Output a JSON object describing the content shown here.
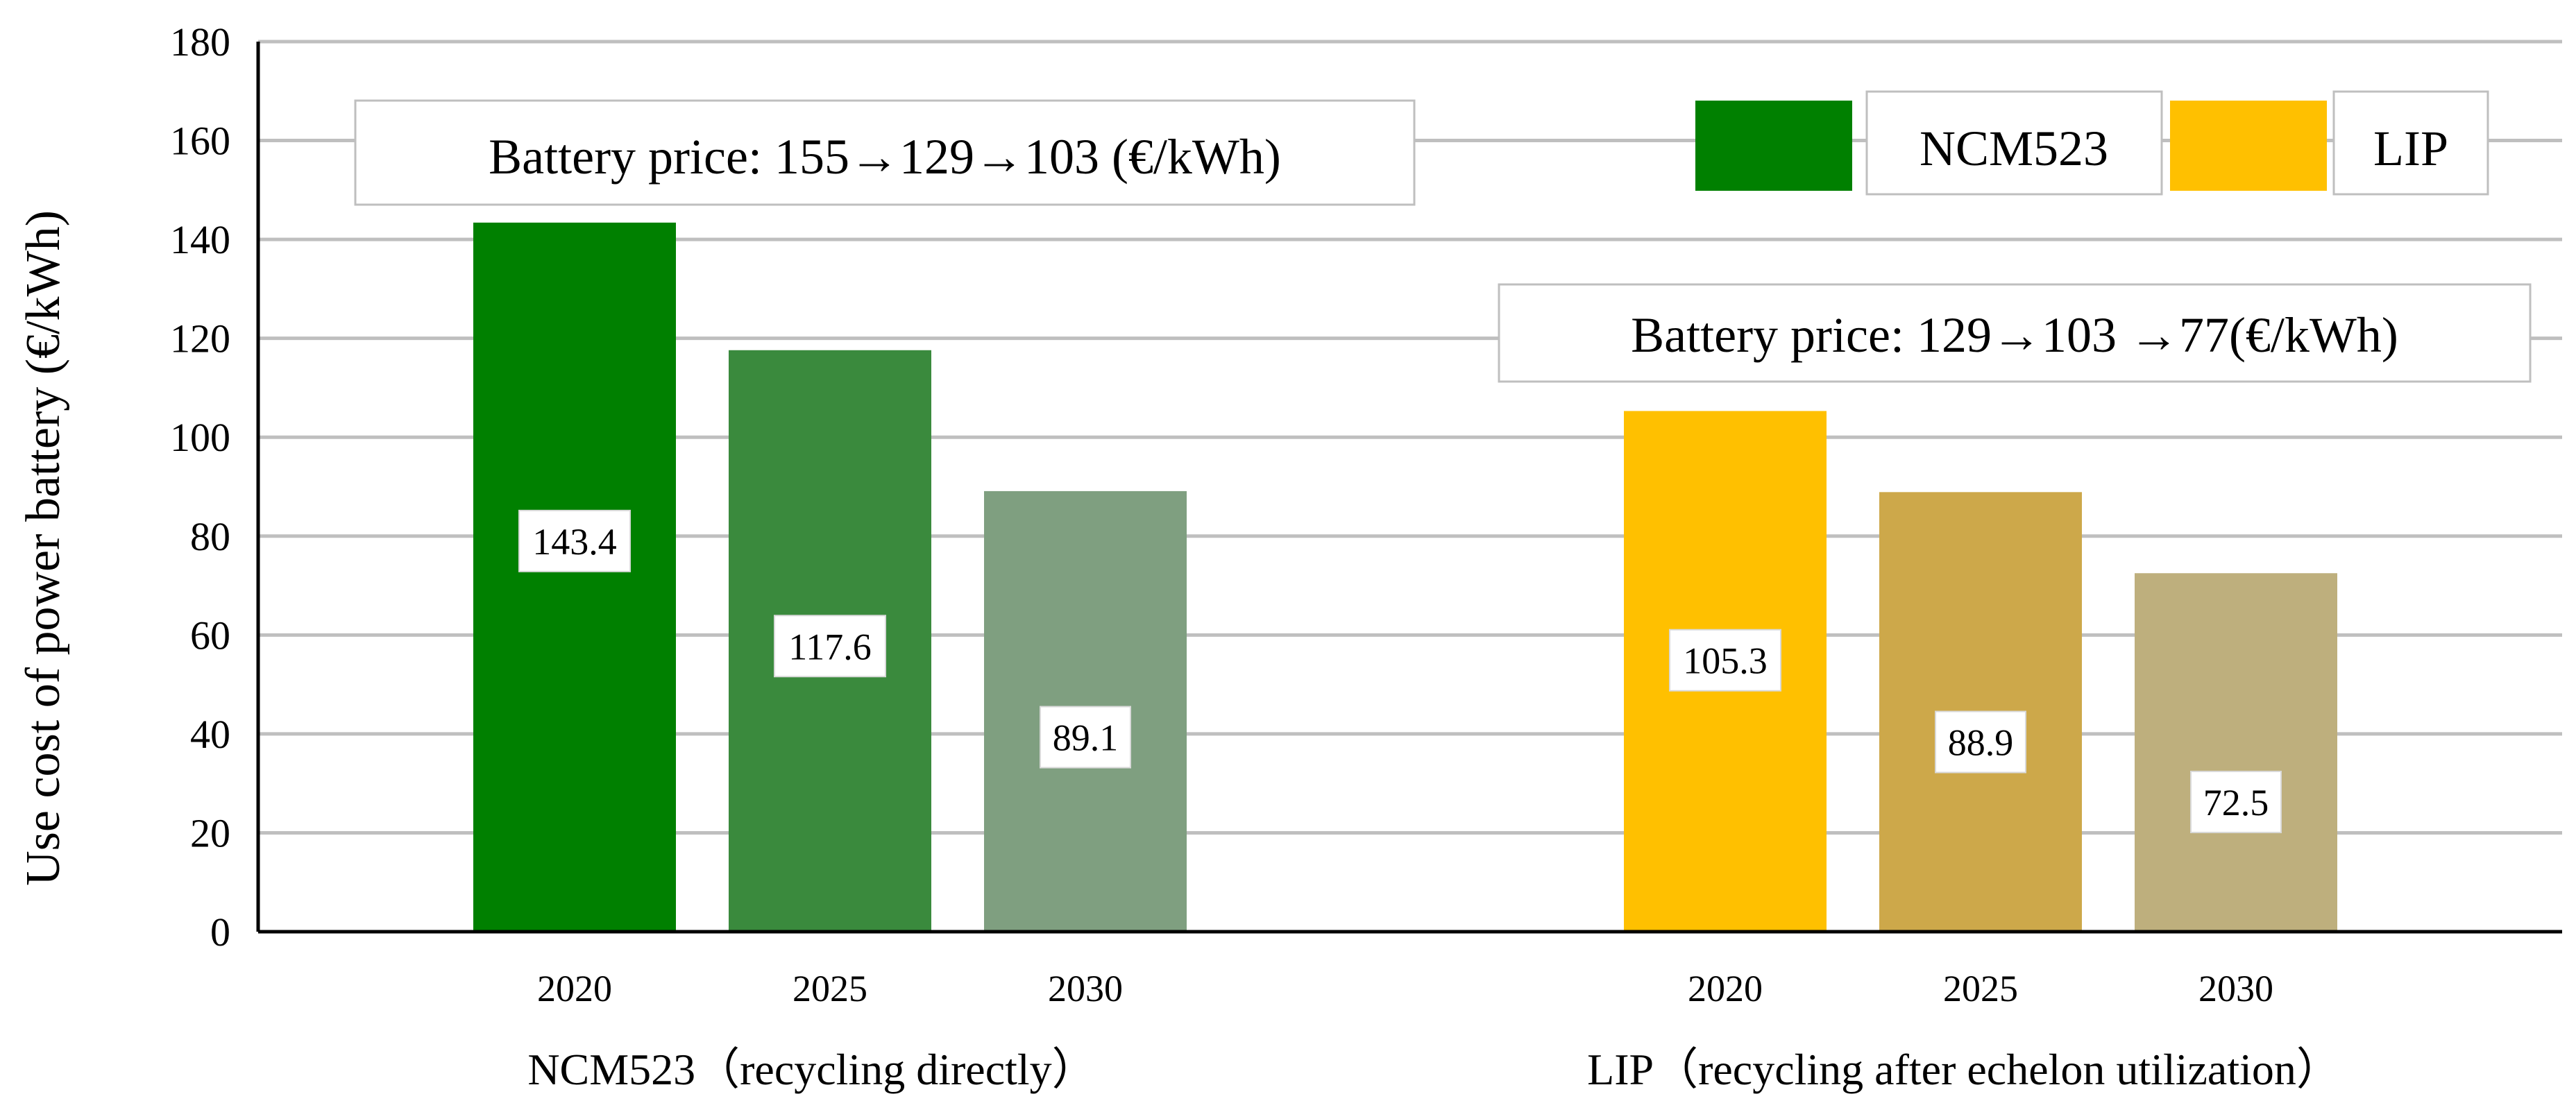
{
  "chart_data": {
    "type": "bar",
    "title": "",
    "ylabel": "Use cost of power battery (€/kWh)",
    "xlabel": "",
    "ylim": [
      0,
      180
    ],
    "yticks": [
      0,
      20,
      40,
      60,
      80,
      100,
      120,
      140,
      160,
      180
    ],
    "grid": true,
    "legend": {
      "position": "top-right",
      "entries": [
        {
          "name": "NCM523",
          "color": "#008000"
        },
        {
          "name": "LIP",
          "color": "#ffc000"
        }
      ]
    },
    "groups": [
      {
        "label": "NCM523（recycling directly）",
        "annotation": "Battery price: 155→129→103 (€/kWh)",
        "bars": [
          {
            "category": "2020",
            "value": 143.4,
            "label": "143.4",
            "color": "#008000"
          },
          {
            "category": "2025",
            "value": 117.6,
            "label": "117.6",
            "color": "#3a8a3d"
          },
          {
            "category": "2030",
            "value": 89.1,
            "label": "89.1",
            "color": "#7f9f80"
          }
        ]
      },
      {
        "label": "LIP（recycling after echelon utilization）",
        "annotation": "Battery price: 129→103 →77(€/kWh)",
        "bars": [
          {
            "category": "2020",
            "value": 105.3,
            "label": "105.3",
            "color": "#ffc000"
          },
          {
            "category": "2025",
            "value": 88.9,
            "label": "88.9",
            "color": "#cda84a"
          },
          {
            "category": "2030",
            "value": 72.5,
            "label": "72.5",
            "color": "#beaf7d"
          }
        ]
      }
    ]
  }
}
